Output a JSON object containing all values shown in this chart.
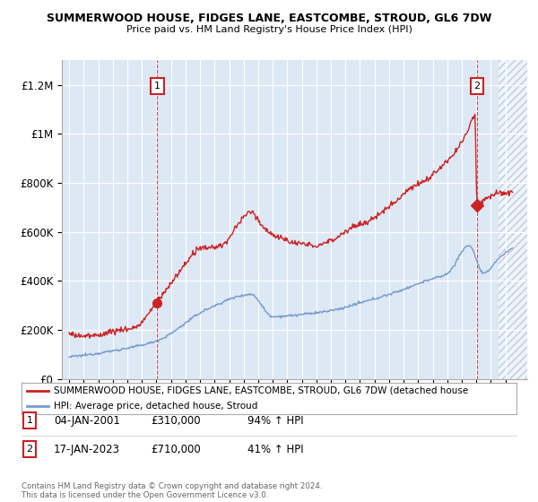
{
  "title": "SUMMERWOOD HOUSE, FIDGES LANE, EASTCOMBE, STROUD, GL6 7DW",
  "subtitle": "Price paid vs. HM Land Registry's House Price Index (HPI)",
  "legend_label_red": "SUMMERWOOD HOUSE, FIDGES LANE, EASTCOMBE, STROUD, GL6 7DW (detached house",
  "legend_label_blue": "HPI: Average price, detached house, Stroud",
  "annotation1_date": "04-JAN-2001",
  "annotation1_price": "£310,000",
  "annotation1_hpi": "94% ↑ HPI",
  "annotation2_date": "17-JAN-2023",
  "annotation2_price": "£710,000",
  "annotation2_hpi": "41% ↑ HPI",
  "footer": "Contains HM Land Registry data © Crown copyright and database right 2024.\nThis data is licensed under the Open Government Licence v3.0.",
  "red_color": "#cc2222",
  "blue_color": "#7799cc",
  "plot_bg_color": "#dde8f5",
  "hatch_bg_color": "#f0f4fa",
  "background_color": "#ffffff",
  "grid_color": "#ffffff",
  "annotation_box_color": "#cc2222",
  "purchase1_year": 2001.05,
  "purchase1_value": 310000,
  "purchase2_year": 2023.05,
  "purchase2_value": 710000,
  "ylim_min": 0,
  "ylim_max": 1300000,
  "xlim_min": 1994.5,
  "xlim_max": 2026.5
}
